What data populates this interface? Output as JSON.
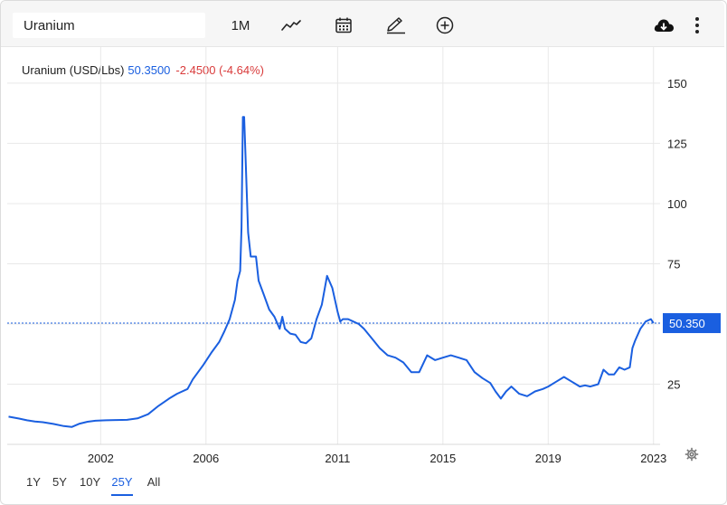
{
  "toolbar": {
    "search_value": "Uranium",
    "period_label": "1M",
    "icons": [
      "line-chart-icon",
      "calendar-icon",
      "pencil-icon",
      "add-circle-icon",
      "download-cloud-icon",
      "more-vertical-icon"
    ]
  },
  "legend": {
    "name": "Uranium (USD/Lbs)",
    "price": "50.3500",
    "change": "-2.4500 (-4.64%)"
  },
  "colors": {
    "series": "#1a5fe0",
    "negative": "#d93b3b",
    "grid": "#e8e8e8",
    "price_badge": "#1a5fe0"
  },
  "range_selector": {
    "options": [
      "1Y",
      "5Y",
      "10Y",
      "25Y",
      "All"
    ],
    "active": "25Y"
  },
  "chart_data": {
    "type": "line",
    "title": "",
    "xlabel": "",
    "ylabel": "",
    "x_ticks": [
      "2002",
      "2006",
      "2011",
      "2015",
      "2019",
      "2023"
    ],
    "y_ticks": [
      25,
      50,
      75,
      100,
      125,
      150
    ],
    "y_tick_labels": [
      "25",
      "",
      "75",
      "100",
      "125",
      "150"
    ],
    "ylim": [
      0,
      165
    ],
    "xlim": [
      1998.45,
      2023.25
    ],
    "y_axis_side": "right",
    "grid": true,
    "last_price_line": 50.35,
    "last_price_label": "50.350",
    "series": [
      {
        "name": "Uranium (USD/Lbs)",
        "x": [
          1998.5,
          1998.9,
          1999.2,
          1999.5,
          1999.8,
          2000.2,
          2000.6,
          2000.9,
          2001.2,
          2001.5,
          2001.8,
          2002.2,
          2002.6,
          2003.0,
          2003.4,
          2003.8,
          2004.2,
          2004.6,
          2004.9,
          2005.3,
          2005.5,
          2005.9,
          2006.2,
          2006.5,
          2006.7,
          2006.9,
          2007.0,
          2007.1,
          2007.2,
          2007.3,
          2007.35,
          2007.4,
          2007.45,
          2007.5,
          2007.6,
          2007.7,
          2007.9,
          2008.0,
          2008.2,
          2008.4,
          2008.6,
          2008.8,
          2008.9,
          2009.0,
          2009.2,
          2009.4,
          2009.6,
          2009.8,
          2010.0,
          2010.2,
          2010.4,
          2010.6,
          2010.8,
          2011.0,
          2011.1,
          2011.2,
          2011.4,
          2011.6,
          2011.8,
          2012.0,
          2012.3,
          2012.6,
          2012.9,
          2013.2,
          2013.5,
          2013.8,
          2014.1,
          2014.4,
          2014.7,
          2015.0,
          2015.3,
          2015.6,
          2015.9,
          2016.2,
          2016.5,
          2016.8,
          2017.0,
          2017.2,
          2017.4,
          2017.6,
          2017.9,
          2018.2,
          2018.5,
          2018.8,
          2019.0,
          2019.3,
          2019.6,
          2019.9,
          2020.2,
          2020.4,
          2020.6,
          2020.9,
          2021.1,
          2021.3,
          2021.5,
          2021.7,
          2021.9,
          2022.1,
          2022.2,
          2022.3,
          2022.5,
          2022.7,
          2022.9,
          2023.0
        ],
        "values": [
          11.5,
          10.7,
          10.0,
          9.5,
          9.2,
          8.5,
          7.6,
          7.2,
          8.6,
          9.4,
          9.8,
          10.0,
          10.1,
          10.2,
          10.8,
          12.5,
          16.0,
          19.0,
          21.0,
          23.0,
          27.0,
          33.0,
          38.0,
          42.5,
          47.0,
          52.0,
          56.0,
          60.0,
          68.0,
          72.0,
          90.0,
          136.0,
          136.0,
          120.0,
          88.0,
          78.0,
          78.0,
          68.0,
          62.0,
          56.0,
          53.0,
          48.0,
          53.0,
          48.0,
          46.0,
          45.5,
          42.5,
          42.0,
          44.0,
          52.0,
          58.0,
          70.0,
          65.0,
          55.0,
          51.0,
          52.0,
          52.0,
          51.0,
          50.0,
          48.0,
          44.0,
          40.0,
          37.0,
          36.0,
          34.0,
          30.0,
          30.0,
          37.0,
          35.0,
          36.0,
          37.0,
          36.0,
          35.0,
          30.0,
          27.5,
          25.5,
          22.0,
          19.0,
          22.0,
          24.0,
          21.0,
          20.0,
          22.0,
          23.0,
          24.0,
          26.0,
          28.0,
          26.0,
          24.0,
          24.5,
          24.0,
          25.0,
          31.0,
          29.0,
          29.0,
          32.0,
          31.0,
          32.0,
          40.0,
          43.0,
          48.0,
          51.0,
          52.0,
          50.35
        ]
      }
    ]
  }
}
